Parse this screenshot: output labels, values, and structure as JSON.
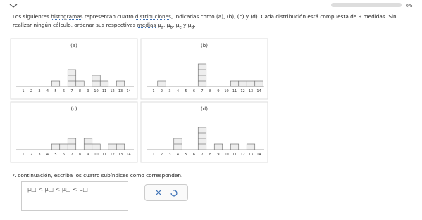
{
  "progress": "0/5",
  "question": {
    "segments": [
      {
        "text": "Los siguientes "
      },
      {
        "text": "histogramas",
        "link": true
      },
      {
        "text": " representan cuatro "
      },
      {
        "text": "distribuciones",
        "link": true
      },
      {
        "text": ", indicadas como (a), (b), (c) y (d). Cada distribución está compuesta de 9 medidas. Sin realizar ningún cálculo, ordenar sus respectivas "
      },
      {
        "text": "medias",
        "link": true
      },
      {
        "text": " μ"
      },
      {
        "text": "a",
        "sub": true
      },
      {
        "text": ", μ"
      },
      {
        "text": "b",
        "sub": true
      },
      {
        "text": ", μ"
      },
      {
        "text": "c",
        "sub": true
      },
      {
        "text": " y μ"
      },
      {
        "text": "d",
        "sub": true
      },
      {
        "text": "."
      }
    ]
  },
  "axis_labels": [
    1,
    2,
    3,
    4,
    5,
    6,
    7,
    8,
    9,
    10,
    11,
    12,
    13,
    14
  ],
  "histograms": [
    {
      "label": "(a)",
      "counts": [
        0,
        0,
        0,
        0,
        1,
        0,
        3,
        1,
        0,
        2,
        1,
        0,
        1,
        0
      ]
    },
    {
      "label": "(b)",
      "counts": [
        0,
        1,
        0,
        0,
        0,
        0,
        4,
        0,
        0,
        0,
        1,
        1,
        1,
        1
      ]
    },
    {
      "label": "(c)",
      "counts": [
        0,
        0,
        0,
        0,
        1,
        1,
        2,
        0,
        2,
        1,
        0,
        1,
        1,
        0
      ]
    },
    {
      "label": "(d)",
      "counts": [
        0,
        0,
        0,
        2,
        0,
        0,
        4,
        0,
        1,
        0,
        1,
        0,
        1,
        0
      ]
    }
  ],
  "instruction": "A continuación, escriba los cuatro subíndices como corresponden.",
  "answer_template": "μ□ < μ□ < μ□ < μ□"
}
